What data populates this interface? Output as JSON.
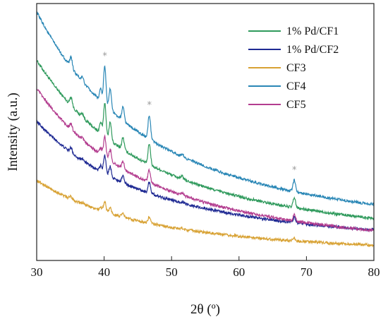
{
  "chart_data": {
    "type": "line",
    "title": "",
    "xlabel": "2θ (º)",
    "ylabel": "Intensity (a.u.)",
    "xlim": [
      30,
      80
    ],
    "x_ticks": [
      "30",
      "40",
      "50",
      "60",
      "70",
      "80"
    ],
    "y_ticks": [],
    "grid": false,
    "legend": "top-right",
    "peak_markers": [
      {
        "x": 40.1,
        "label": "*"
      },
      {
        "x": 46.7,
        "label": "*"
      },
      {
        "x": 68.2,
        "label": "*"
      }
    ],
    "peaks": [
      {
        "x": 35.1,
        "amp": 0.16
      },
      {
        "x": 36.8,
        "amp": 0.07
      },
      {
        "x": 39.5,
        "amp": 0.2
      },
      {
        "x": 40.1,
        "amp": 0.62
      },
      {
        "x": 40.9,
        "amp": 0.34
      },
      {
        "x": 42.8,
        "amp": 0.22
      },
      {
        "x": 46.7,
        "amp": 0.38
      },
      {
        "x": 51.6,
        "amp": 0.05
      },
      {
        "x": 68.2,
        "amp": 0.18
      }
    ],
    "series": [
      {
        "name": "1% Pd/CF1",
        "color": "#2f9a5c",
        "baseline": 1.78,
        "decay": 2.05,
        "end": 0.12,
        "peak_scale": 1.0
      },
      {
        "name": "1% Pd/CF2",
        "color": "#1f2a93",
        "baseline": 1.22,
        "decay": 1.35,
        "end": 0.08,
        "peak_scale": 0.55
      },
      {
        "name": "CF3",
        "color": "#d8a234",
        "baseline": 0.68,
        "decay": 0.95,
        "end": 0.0,
        "peak_scale": 0.3
      },
      {
        "name": "CF4",
        "color": "#2a87b6",
        "baseline": 2.22,
        "decay": 3.05,
        "end": 0.2,
        "peak_scale": 1.15
      },
      {
        "name": "CF5",
        "color": "#b33d8f",
        "baseline": 1.52,
        "decay": 1.8,
        "end": 0.03,
        "peak_scale": 0.6
      }
    ]
  }
}
